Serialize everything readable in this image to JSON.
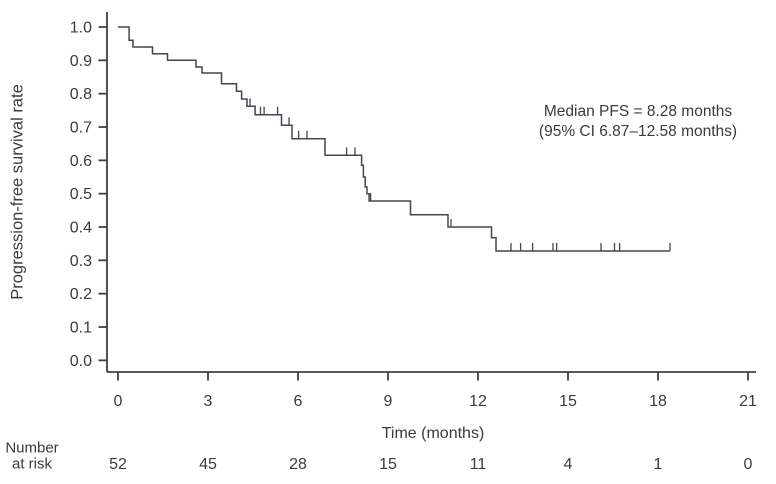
{
  "colors": {
    "curve": "#45454f",
    "axis": "#3f3f47",
    "text": "#3b3b3b",
    "background": "#ffffff"
  },
  "chart_data": {
    "type": "line",
    "subtype": "kaplan-meier-step",
    "title": "",
    "xlabel": "Time (months)",
    "ylabel": "Progression-free survival rate",
    "xlim": [
      0,
      21
    ],
    "ylim": [
      0.0,
      1.0
    ],
    "grid": false,
    "legend_position": "none",
    "xticks": [
      "0",
      "3",
      "6",
      "9",
      "12",
      "15",
      "18",
      "21"
    ],
    "yticks": [
      "1.0",
      "0.9",
      "0.8",
      "0.7",
      "0.6",
      "0.5",
      "0.4",
      "0.3",
      "0.2",
      "0.1",
      "0.0"
    ],
    "annotation": {
      "line1": "Median PFS = 8.28 months",
      "line2": "(95% CI 6.87–12.58 months)"
    },
    "series": [
      {
        "name": "Progression-free survival",
        "end_time": 18.4,
        "steps": [
          [
            0,
            1.0
          ],
          [
            0.37,
            0.96
          ],
          [
            0.5,
            0.94
          ],
          [
            1.15,
            0.92
          ],
          [
            1.65,
            0.9
          ],
          [
            2.6,
            0.88
          ],
          [
            2.8,
            0.862
          ],
          [
            3.45,
            0.83
          ],
          [
            3.95,
            0.807
          ],
          [
            4.12,
            0.784
          ],
          [
            4.3,
            0.762
          ],
          [
            4.57,
            0.737
          ],
          [
            5.45,
            0.705
          ],
          [
            5.8,
            0.665
          ],
          [
            6.9,
            0.615
          ],
          [
            8.12,
            0.585
          ],
          [
            8.18,
            0.55
          ],
          [
            8.24,
            0.52
          ],
          [
            8.3,
            0.5
          ],
          [
            8.37,
            0.478
          ],
          [
            9.75,
            0.437
          ],
          [
            11.0,
            0.4
          ],
          [
            12.45,
            0.368
          ],
          [
            12.6,
            0.328
          ]
        ],
        "censor_marks": [
          [
            4.4,
            0.762
          ],
          [
            4.75,
            0.737
          ],
          [
            4.87,
            0.737
          ],
          [
            5.32,
            0.737
          ],
          [
            5.7,
            0.705
          ],
          [
            6.02,
            0.665
          ],
          [
            6.3,
            0.665
          ],
          [
            7.62,
            0.615
          ],
          [
            7.9,
            0.615
          ],
          [
            8.42,
            0.478
          ],
          [
            11.1,
            0.4
          ],
          [
            13.1,
            0.328
          ],
          [
            13.42,
            0.328
          ],
          [
            13.82,
            0.328
          ],
          [
            14.5,
            0.328
          ],
          [
            14.62,
            0.328
          ],
          [
            16.1,
            0.328
          ],
          [
            16.55,
            0.328
          ],
          [
            16.72,
            0.328
          ],
          [
            18.4,
            0.328
          ]
        ]
      }
    ],
    "number_at_risk": {
      "label_line1": "Number",
      "label_line2": "at risk",
      "times": [
        0,
        3,
        6,
        9,
        12,
        15,
        18,
        21
      ],
      "values": [
        "52",
        "45",
        "28",
        "15",
        "11",
        "4",
        "1",
        "0"
      ]
    }
  }
}
